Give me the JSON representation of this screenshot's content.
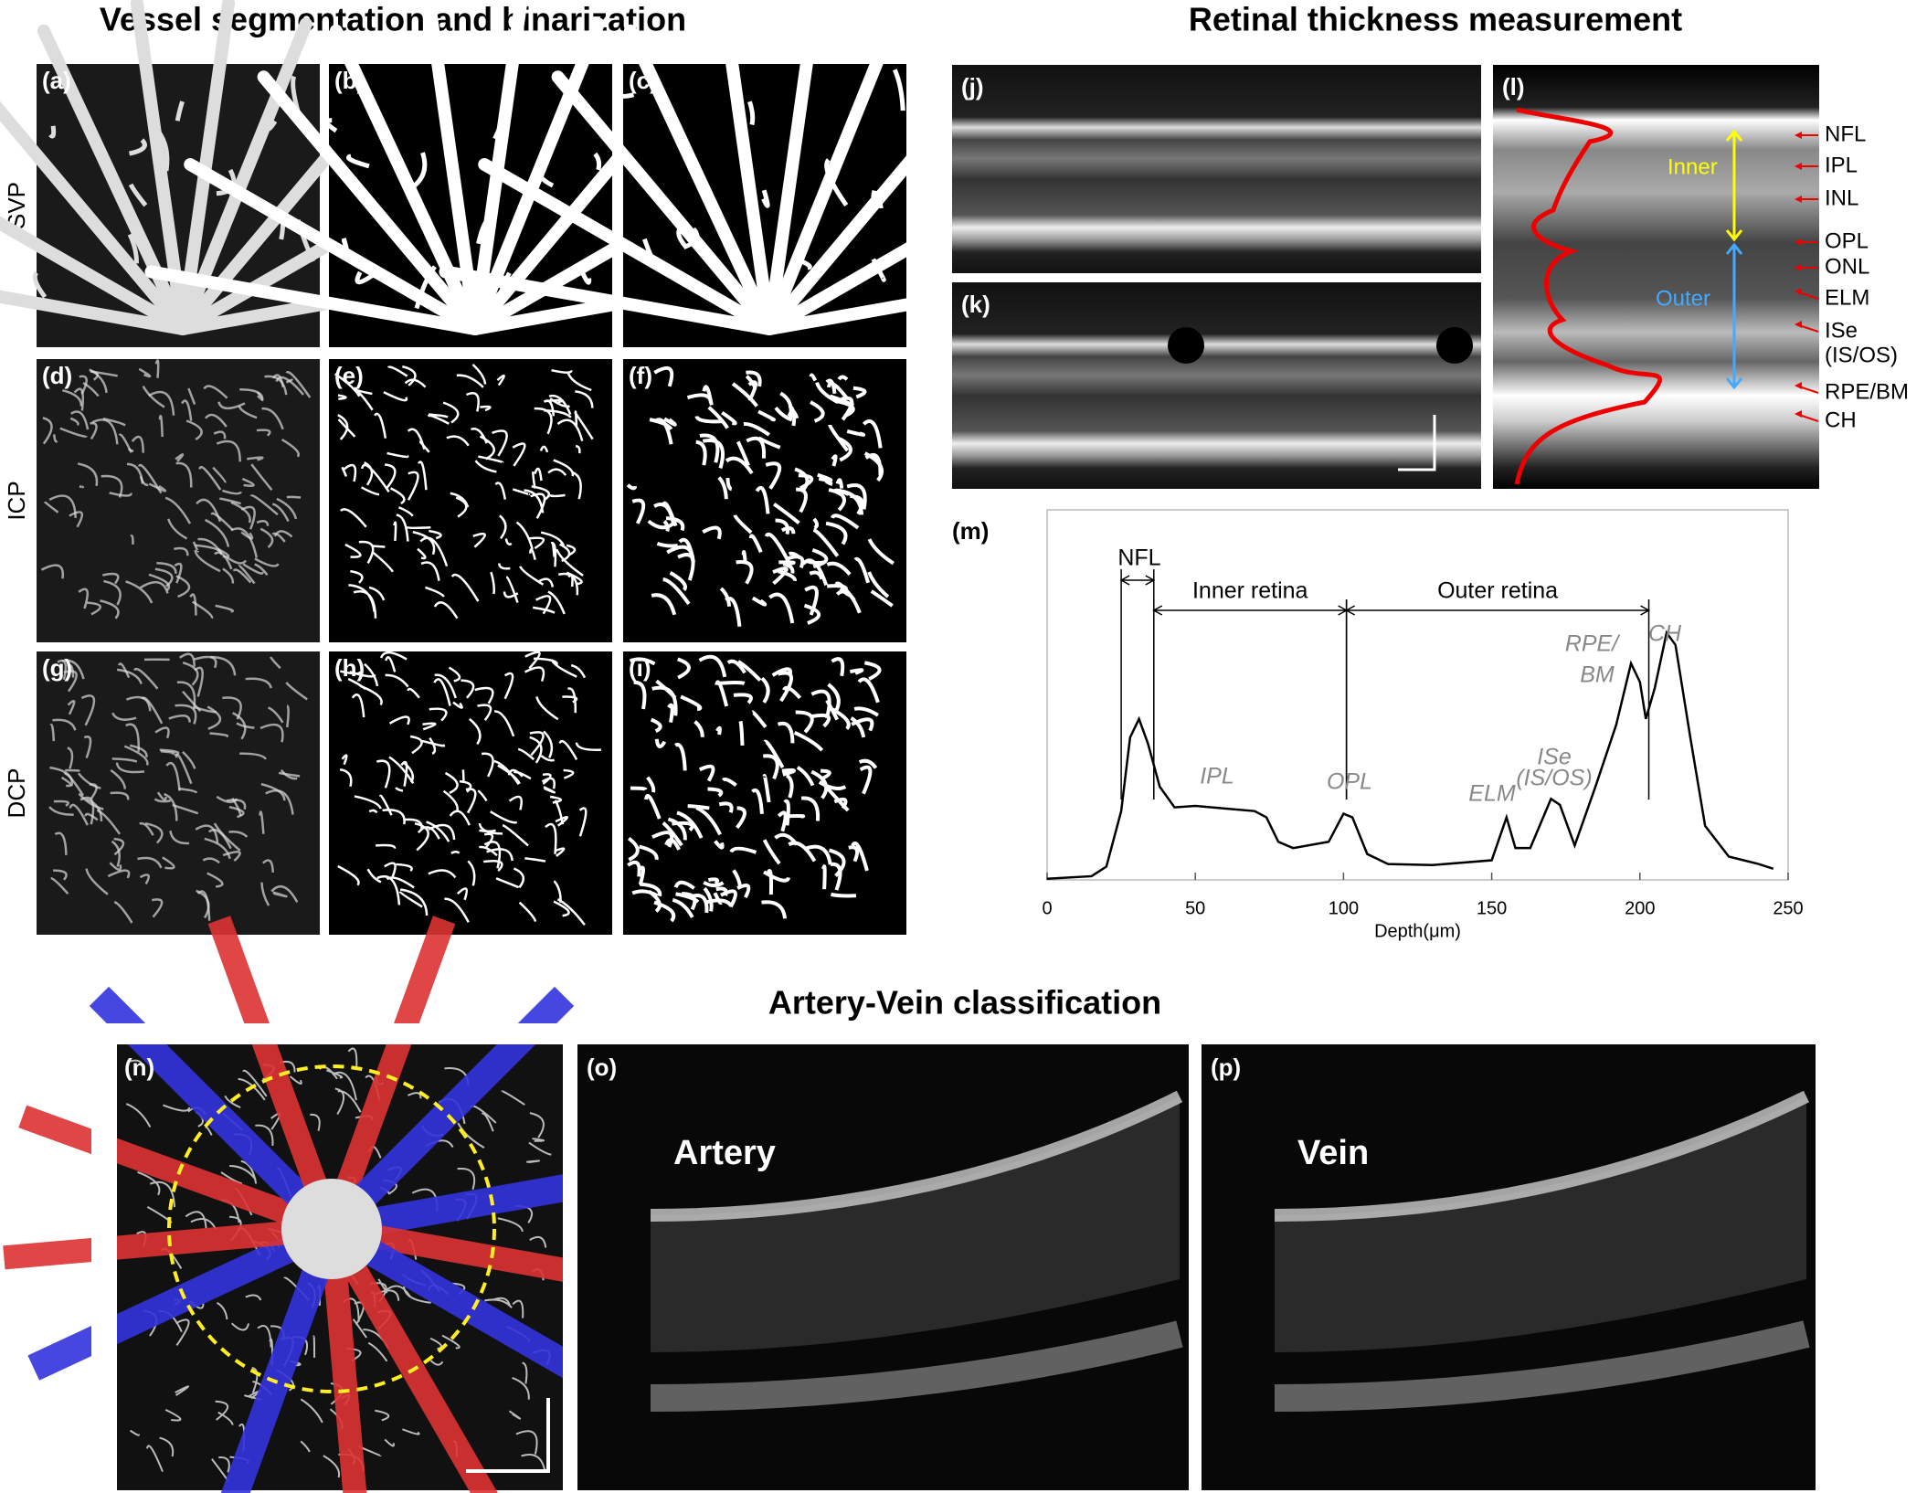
{
  "sections": {
    "segmentation": {
      "title": "Vessel segmentation and binarization",
      "rows": [
        "SVP",
        "ICP",
        "DCP"
      ],
      "panels": [
        "(a)",
        "(b)",
        "(c)",
        "(d)",
        "(e)",
        "(f)",
        "(g)",
        "(h)",
        "(i)"
      ]
    },
    "thickness": {
      "title": "Retinal thickness measurement",
      "panels": [
        "(j)",
        "(k)",
        "(l)"
      ],
      "layers": [
        "NFL",
        "IPL",
        "INL",
        "OPL",
        "ONL",
        "ELM",
        "ISe",
        "(IS/OS)",
        "RPE/BM",
        "CH"
      ],
      "inner": "Inner",
      "outer": "Outer"
    },
    "av": {
      "title": "Artery-Vein classification",
      "panels": [
        "(n)",
        "(o)",
        "(p)"
      ],
      "labels": [
        "Artery",
        "Vein"
      ]
    }
  },
  "chart_data": {
    "type": "line",
    "panel": "(m)",
    "xlabel": "Depth(μm)",
    "x": [
      0,
      15,
      20,
      25,
      28,
      31,
      34,
      38,
      43,
      50,
      60,
      70,
      74,
      78,
      83,
      95,
      100,
      103,
      108,
      115,
      130,
      150,
      155,
      158,
      163,
      170,
      173,
      178,
      185,
      192,
      197,
      200,
      202,
      205,
      209,
      212,
      217,
      222,
      230,
      240,
      245
    ],
    "series": [
      {
        "color": "#000000",
        "values": [
          0.003,
          0.01,
          0.036,
          0.186,
          0.385,
          0.435,
          0.369,
          0.252,
          0.196,
          0.2,
          0.193,
          0.186,
          0.169,
          0.103,
          0.086,
          0.103,
          0.179,
          0.169,
          0.07,
          0.043,
          0.04,
          0.053,
          0.169,
          0.086,
          0.086,
          0.219,
          0.203,
          0.093,
          0.252,
          0.419,
          0.585,
          0.535,
          0.435,
          0.518,
          0.668,
          0.635,
          0.385,
          0.146,
          0.063,
          0.043,
          0.03
        ]
      }
    ],
    "xlim": [
      0,
      250
    ],
    "xticks": [
      0,
      50,
      100,
      150,
      200,
      250
    ],
    "ylim": [
      0,
      1
    ],
    "annotations": [
      {
        "label": "NFL",
        "x": [
          25,
          36
        ]
      },
      {
        "label": "Inner retina",
        "x": [
          36,
          101
        ]
      },
      {
        "label": "Outer retina",
        "x": [
          101,
          203
        ]
      }
    ],
    "peak_labels": [
      "IPL",
      "OPL",
      "ELM",
      "ISe",
      "(IS/OS)",
      "RPE/",
      "BM",
      "CH"
    ]
  }
}
